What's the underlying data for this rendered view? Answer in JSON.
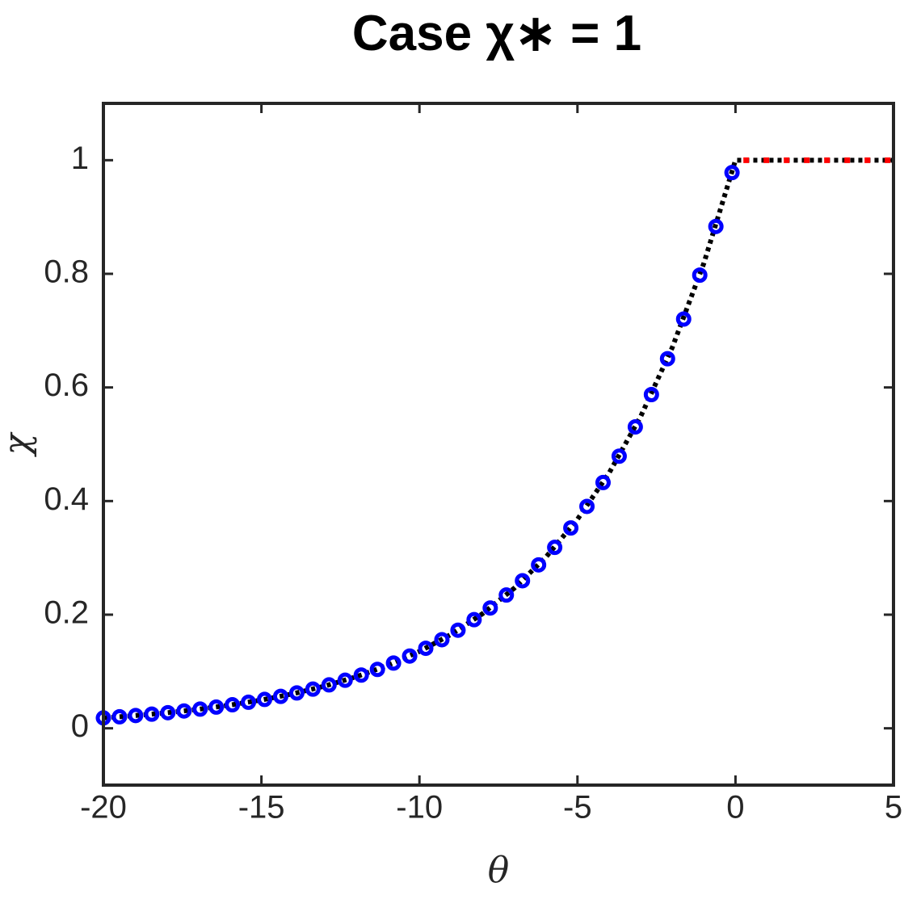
{
  "chart_data": {
    "type": "line",
    "title": "Case χ∗ = 1",
    "x_label": "θ",
    "y_label": "χ",
    "xlim": [
      -20,
      5
    ],
    "ylim": [
      -0.1,
      1.1
    ],
    "xticks": [
      -20,
      -15,
      -10,
      -5,
      0,
      5
    ],
    "yticks": [
      0,
      0.2,
      0.4,
      0.6,
      0.8,
      1
    ],
    "series": [
      {
        "color": "#000000",
        "style": "dotted-line",
        "x": [
          -20,
          -19,
          -18,
          -17,
          -16,
          -15,
          -14,
          -13,
          -12,
          -11,
          -10,
          -9,
          -8,
          -7,
          -6,
          -5,
          -4,
          -3,
          -2,
          -1,
          0,
          5
        ],
        "values": [
          0.0183,
          0.0224,
          0.0273,
          0.0334,
          0.0408,
          0.0498,
          0.0608,
          0.0743,
          0.0907,
          0.1108,
          0.1353,
          0.1653,
          0.2019,
          0.2466,
          0.3012,
          0.3679,
          0.4493,
          0.5488,
          0.6703,
          0.8187,
          1,
          1
        ]
      },
      {
        "color": "#ff0000",
        "style": "dotted-line",
        "x": [
          0.25,
          5
        ],
        "values": [
          1,
          1
        ]
      },
      {
        "color": "#0000ff",
        "style": "circles",
        "x": [
          -20,
          -19.49,
          -18.98,
          -18.47,
          -17.96,
          -17.45,
          -16.94,
          -16.43,
          -15.92,
          -15.41,
          -14.9,
          -14.39,
          -13.88,
          -13.37,
          -12.86,
          -12.35,
          -11.84,
          -11.33,
          -10.82,
          -10.31,
          -9.8,
          -9.29,
          -8.78,
          -8.27,
          -7.76,
          -7.25,
          -6.74,
          -6.23,
          -5.72,
          -5.21,
          -4.7,
          -4.19,
          -3.68,
          -3.17,
          -2.66,
          -2.15,
          -1.64,
          -1.13,
          -0.62,
          -0.11
        ],
        "values": [
          0.0183,
          0.0203,
          0.0225,
          0.0249,
          0.0275,
          0.0305,
          0.0338,
          0.0374,
          0.0414,
          0.0459,
          0.0508,
          0.0562,
          0.0623,
          0.069,
          0.0764,
          0.0846,
          0.0937,
          0.1037,
          0.1149,
          0.1272,
          0.1409,
          0.156,
          0.1727,
          0.1913,
          0.2118,
          0.2346,
          0.2598,
          0.2877,
          0.3185,
          0.3527,
          0.3906,
          0.4326,
          0.479,
          0.5305,
          0.5874,
          0.6505,
          0.7204,
          0.7977,
          0.8834,
          0.9782
        ]
      }
    ]
  }
}
